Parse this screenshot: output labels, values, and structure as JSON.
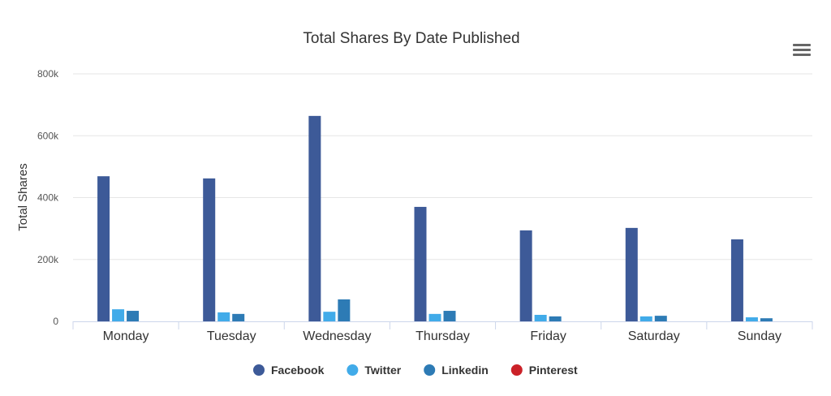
{
  "chart_data": {
    "type": "bar",
    "title": "Total Shares By Date Published",
    "xlabel": "",
    "ylabel": "Total Shares",
    "ylim": [
      0,
      800000
    ],
    "yticks": [
      0,
      200000,
      400000,
      600000,
      800000
    ],
    "ytick_labels": [
      "0",
      "200k",
      "400k",
      "600k",
      "800k"
    ],
    "grid": true,
    "legend_position": "bottom-center",
    "categories": [
      "Monday",
      "Tuesday",
      "Wednesday",
      "Thursday",
      "Friday",
      "Saturday",
      "Sunday"
    ],
    "series": [
      {
        "name": "Facebook",
        "color": "#3d5a98",
        "values": [
          469000,
          462000,
          664000,
          370000,
          294000,
          302000,
          265000
        ]
      },
      {
        "name": "Twitter",
        "color": "#41abe9",
        "values": [
          39000,
          29000,
          31000,
          24000,
          21000,
          16000,
          13000
        ]
      },
      {
        "name": "Linkedin",
        "color": "#2d7bb5",
        "values": [
          34000,
          24000,
          71000,
          34000,
          16000,
          18000,
          10000
        ]
      },
      {
        "name": "Pinterest",
        "color": "#cb2128",
        "values": [
          0,
          0,
          0,
          0,
          0,
          0,
          0
        ]
      }
    ]
  },
  "menu": {
    "icon": "hamburger-menu-icon"
  }
}
